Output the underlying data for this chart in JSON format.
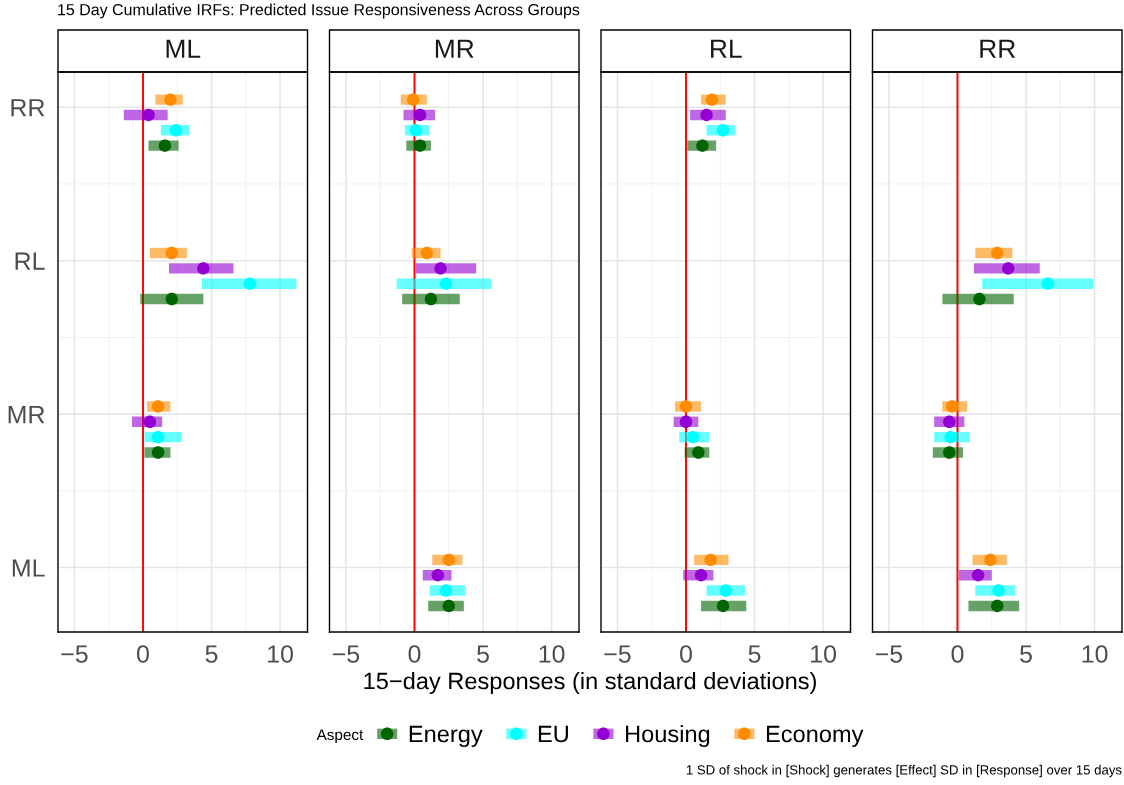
{
  "chart_data": [
    {
      "type": "scatter",
      "orientation": "horizontal",
      "title": "ML",
      "xlabel": "15−day Responses (in standard deviations)",
      "legend": "bottom",
      "legend_title": "Aspect",
      "marker": "circle",
      "grid": true,
      "annotations": [
        "15 Day Cumulative IRFs: Predicted Issue Responsiveness Across Groups",
        "1 SD of shock in [Shock] generates [Effect] SD in [Response] over 15 days"
      ],
      "categories": [
        "RR",
        "RL",
        "MR",
        "ML"
      ],
      "series": [
        {
          "name": "Energy",
          "color": "#006400",
          "values": [
            1.6,
            2.1,
            1.1,
            null
          ],
          "errors": [
            [
              0.4,
              2.6
            ],
            [
              -0.2,
              4.4
            ],
            [
              0.1,
              2.0
            ],
            null
          ]
        },
        {
          "name": "EU",
          "color": "#00ffff",
          "values": [
            2.4,
            7.8,
            1.1,
            null
          ],
          "errors": [
            [
              1.3,
              3.4
            ],
            [
              4.3,
              11.2
            ],
            [
              0.1,
              2.8
            ],
            null
          ]
        },
        {
          "name": "Housing",
          "color": "#9400d3",
          "values": [
            0.4,
            4.4,
            0.5,
            null
          ],
          "errors": [
            [
              -1.4,
              1.8
            ],
            [
              1.9,
              6.6
            ],
            [
              -0.8,
              1.4
            ],
            null
          ]
        },
        {
          "name": "Economy",
          "color": "#ff8c00",
          "values": [
            2.0,
            2.1,
            1.1,
            null
          ],
          "errors": [
            [
              0.9,
              2.9
            ],
            [
              0.5,
              3.2
            ],
            [
              0.3,
              2.0
            ],
            null
          ]
        }
      ],
      "xlim": [
        -6.2,
        12.0
      ],
      "xticks": [
        -5,
        0,
        5,
        10
      ],
      "ref_lines": [
        {
          "axis": "x",
          "value": 0,
          "color": "#ff0000"
        }
      ]
    },
    {
      "type": "scatter",
      "orientation": "horizontal",
      "title": "MR",
      "marker": "circle",
      "grid": true,
      "tick_labels": "x",
      "categories": [
        null,
        null,
        null,
        null
      ],
      "series": [
        {
          "name": "Energy",
          "color": "#006400",
          "values": [
            0.4,
            1.2,
            null,
            2.5
          ],
          "errors": [
            [
              -0.6,
              1.2
            ],
            [
              -0.9,
              3.3
            ],
            null,
            [
              1.0,
              3.6
            ]
          ]
        },
        {
          "name": "EU",
          "color": "#00ffff",
          "values": [
            0.1,
            2.3,
            null,
            2.3
          ],
          "errors": [
            [
              -0.7,
              1.1
            ],
            [
              -1.3,
              5.6
            ],
            null,
            [
              1.1,
              3.7
            ]
          ]
        },
        {
          "name": "Housing",
          "color": "#9400d3",
          "values": [
            0.4,
            1.9,
            null,
            1.7
          ],
          "errors": [
            [
              -0.8,
              1.5
            ],
            [
              0.1,
              4.5
            ],
            null,
            [
              0.6,
              2.7
            ]
          ]
        },
        {
          "name": "Economy",
          "color": "#ff8c00",
          "values": [
            -0.1,
            0.9,
            null,
            2.5
          ],
          "errors": [
            [
              -1.0,
              0.9
            ],
            [
              -0.2,
              1.9
            ],
            null,
            [
              1.3,
              3.5
            ]
          ]
        }
      ],
      "xlim": [
        -6.2,
        12.0
      ],
      "xticks": [
        -5,
        0,
        5,
        10
      ],
      "ref_lines": [
        {
          "axis": "x",
          "value": 0,
          "color": "#ff0000"
        }
      ]
    },
    {
      "type": "scatter",
      "orientation": "horizontal",
      "title": "RL",
      "marker": "circle",
      "grid": true,
      "tick_labels": "x",
      "categories": [
        null,
        null,
        null,
        null
      ],
      "series": [
        {
          "name": "Energy",
          "color": "#006400",
          "values": [
            1.2,
            null,
            0.9,
            2.7
          ],
          "errors": [
            [
              0.1,
              2.2
            ],
            null,
            [
              -0.1,
              1.7
            ],
            [
              1.1,
              4.4
            ]
          ]
        },
        {
          "name": "EU",
          "color": "#00ffff",
          "values": [
            2.7,
            null,
            0.5,
            2.9
          ],
          "errors": [
            [
              1.5,
              3.6
            ],
            null,
            [
              -0.5,
              1.7
            ],
            [
              1.5,
              4.3
            ]
          ]
        },
        {
          "name": "Housing",
          "color": "#9400d3",
          "values": [
            1.5,
            null,
            0.0,
            1.1
          ],
          "errors": [
            [
              0.3,
              2.9
            ],
            null,
            [
              -0.9,
              0.9
            ],
            [
              -0.2,
              2.0
            ]
          ]
        },
        {
          "name": "Economy",
          "color": "#ff8c00",
          "values": [
            1.9,
            null,
            0.0,
            1.8
          ],
          "errors": [
            [
              1.1,
              2.9
            ],
            null,
            [
              -0.8,
              1.1
            ],
            [
              0.6,
              3.1
            ]
          ]
        }
      ],
      "xlim": [
        -6.2,
        12.0
      ],
      "xticks": [
        -5,
        0,
        5,
        10
      ],
      "ref_lines": [
        {
          "axis": "x",
          "value": 0,
          "color": "#ff0000"
        }
      ]
    },
    {
      "type": "scatter",
      "orientation": "horizontal",
      "title": "RR",
      "marker": "circle",
      "grid": true,
      "tick_labels": "x",
      "categories": [
        null,
        null,
        null,
        null
      ],
      "series": [
        {
          "name": "Energy",
          "color": "#006400",
          "values": [
            null,
            1.6,
            -0.6,
            2.9
          ],
          "errors": [
            null,
            [
              -1.1,
              4.1
            ],
            [
              -1.8,
              0.4
            ],
            [
              0.8,
              4.5
            ]
          ]
        },
        {
          "name": "EU",
          "color": "#00ffff",
          "values": [
            null,
            6.6,
            -0.5,
            3.0
          ],
          "errors": [
            null,
            [
              1.8,
              9.9
            ],
            [
              -1.7,
              0.9
            ],
            [
              1.3,
              4.2
            ]
          ]
        },
        {
          "name": "Housing",
          "color": "#9400d3",
          "values": [
            null,
            3.7,
            -0.6,
            1.5
          ],
          "errors": [
            null,
            [
              1.2,
              6.0
            ],
            [
              -1.7,
              0.5
            ],
            [
              0.1,
              2.5
            ]
          ]
        },
        {
          "name": "Economy",
          "color": "#ff8c00",
          "values": [
            null,
            2.9,
            -0.4,
            2.4
          ],
          "errors": [
            null,
            [
              1.3,
              4.0
            ],
            [
              -1.1,
              0.7
            ],
            [
              1.1,
              3.6
            ]
          ]
        }
      ],
      "xlim": [
        -6.2,
        12.0
      ],
      "xticks": [
        -5,
        0,
        5,
        10
      ],
      "ref_lines": [
        {
          "axis": "x",
          "value": 0,
          "color": "#ff0000"
        }
      ]
    }
  ]
}
